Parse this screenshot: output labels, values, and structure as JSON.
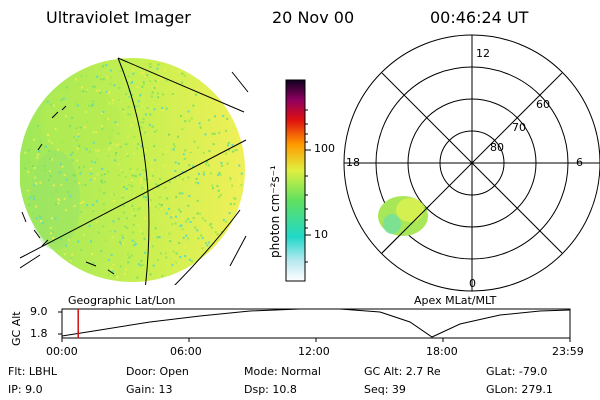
{
  "header": {
    "title": "Ultraviolet Imager",
    "date": "20 Nov 00",
    "time": "00:46:24 UT"
  },
  "colorbar": {
    "unit_label": "photon cm⁻²s⁻¹",
    "ticks": [
      "100",
      "10"
    ]
  },
  "polar_plot": {
    "mlt_labels": [
      "12",
      "18",
      "6",
      "0"
    ],
    "lat_labels": [
      "60",
      "70",
      "80"
    ]
  },
  "map_labels": {
    "left": "Geographic Lat/Lon",
    "right": "Apex MLat/MLT"
  },
  "orbit_plot": {
    "ylabel": "GC Alt",
    "y_ticks": [
      "9.0",
      "1.8"
    ],
    "x_ticks": [
      "00:00",
      "06:00",
      "12:00",
      "18:00",
      "23:59"
    ],
    "marker_time": "00:46"
  },
  "info": {
    "flt": "Flt: LBHL",
    "ip": "IP: 9.0",
    "door": "Door: Open",
    "gain": "Gain: 13",
    "mode": "Mode: Normal",
    "dsp": "Dsp: 10.8",
    "gc_alt": "GC Alt: 2.7 Re",
    "seq": "Seq: 39",
    "glat": "GLat: -79.0",
    "glon": "GLon: 279.1"
  },
  "colors": {
    "earth_fill": "#b8ee4a",
    "earth_bright": "#e8f060",
    "marker": "#d01010"
  }
}
